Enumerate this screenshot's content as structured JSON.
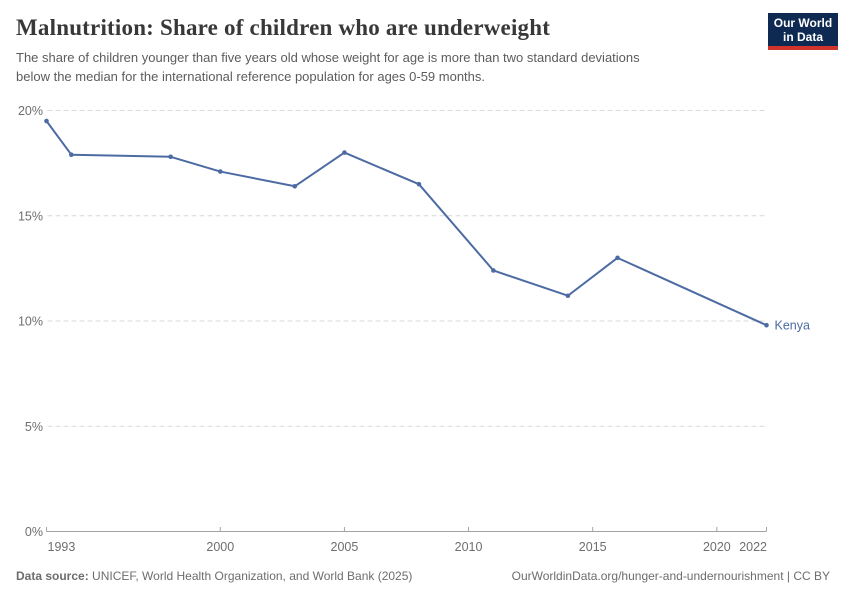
{
  "header": {
    "title": "Malnutrition: Share of children who are underweight",
    "subtitle": "The share of children younger than five years old whose weight for age is more than two standard deviations\nbelow the median for the international reference population for ages 0-59 months.",
    "logo": {
      "line1": "Our World",
      "line2": "in Data",
      "bg_color": "#0e2a52",
      "accent_color": "#d0342c"
    }
  },
  "chart_data": {
    "type": "line",
    "title": "Malnutrition: Share of children who are underweight",
    "xlabel": "",
    "ylabel": "",
    "xlim": [
      1993,
      2022
    ],
    "ylim": [
      0,
      20
    ],
    "yticks": [
      0,
      5,
      10,
      15,
      20
    ],
    "ytick_suffix": "%",
    "xticks": [
      1993,
      2000,
      2005,
      2010,
      2015,
      2020,
      2022
    ],
    "grid": "horizontal-dashed",
    "legend_position": "end-of-line-label",
    "series": [
      {
        "name": "Kenya",
        "color": "#4d6ba3",
        "points": [
          {
            "year": 1993,
            "value": 19.5
          },
          {
            "year": 1994,
            "value": 17.9
          },
          {
            "year": 1998,
            "value": 17.8
          },
          {
            "year": 2000,
            "value": 17.1
          },
          {
            "year": 2003,
            "value": 16.4
          },
          {
            "year": 2005,
            "value": 18.0
          },
          {
            "year": 2008,
            "value": 16.5
          },
          {
            "year": 2011,
            "value": 12.4
          },
          {
            "year": 2014,
            "value": 11.2
          },
          {
            "year": 2016,
            "value": 13.0
          },
          {
            "year": 2022,
            "value": 9.8
          }
        ]
      }
    ],
    "colors": {
      "gridline": "#d9d9d9",
      "axis": "#a3a3a3",
      "tick_label": "#6e6e6e"
    }
  },
  "footer": {
    "source_label": "Data source:",
    "source_text": " UNICEF, World Health Organization, and World Bank (2025)",
    "link_text": "OurWorldinData.org/hunger-and-undernourishment | CC BY"
  }
}
